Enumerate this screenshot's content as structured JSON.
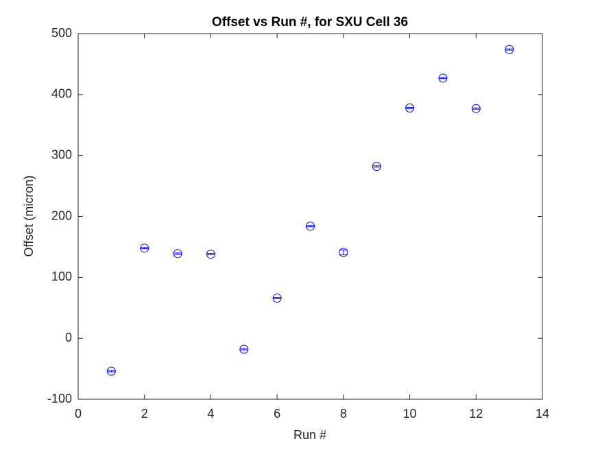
{
  "chart_data": {
    "type": "errorbar",
    "title": "Offset vs Run #, for SXU Cell 36",
    "x_label": "Run #",
    "y_label": "Offset (micron)",
    "x": [
      1,
      2,
      3,
      4,
      5,
      6,
      7,
      8,
      9,
      10,
      11,
      12,
      13
    ],
    "y": [
      -54,
      148,
      139,
      138,
      -18,
      66,
      184,
      141,
      282,
      378,
      427,
      377,
      474
    ],
    "errors": [
      1,
      1,
      1,
      1,
      1,
      1,
      1,
      4,
      1,
      1,
      1,
      1,
      1
    ],
    "color": "#0000ff",
    "xlim": [
      0,
      14
    ],
    "xticks": [
      0,
      2,
      4,
      6,
      8,
      10,
      12,
      14
    ],
    "ylim": [
      -100,
      500
    ],
    "yticks": [
      -100,
      0,
      100,
      200,
      300,
      400,
      500
    ],
    "grid": false
  }
}
